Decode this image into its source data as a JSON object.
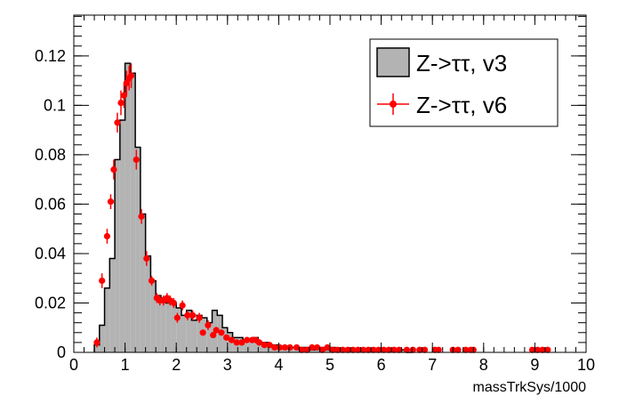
{
  "chart_data": {
    "type": "histogram",
    "title": "",
    "xlabel": "massTrkSys/1000",
    "ylabel": "",
    "xlim": [
      0,
      10
    ],
    "ylim": [
      0,
      0.1365
    ],
    "grid": false,
    "legend_position": "top-right",
    "x_ticks": [
      "0",
      "1",
      "2",
      "3",
      "4",
      "5",
      "6",
      "7",
      "8",
      "9",
      "10"
    ],
    "y_ticks": [
      "0",
      "0.02",
      "0.04",
      "0.06",
      "0.08",
      "0.1",
      "0.12"
    ],
    "bin_width": 0.1,
    "series": [
      {
        "name": "Z->ττ, v3",
        "style": "filled-step",
        "fill_color": "#b3b3b3",
        "line_color": "#000000",
        "bin_starts": [
          0.4,
          0.5,
          0.6,
          0.7,
          0.8,
          0.9,
          1.0,
          1.1,
          1.2,
          1.3,
          1.4,
          1.5,
          1.6,
          1.7,
          1.8,
          1.9,
          2.0,
          2.1,
          2.2,
          2.3,
          2.4,
          2.5,
          2.6,
          2.7,
          2.8,
          2.9,
          3.0,
          3.1,
          3.2,
          3.3,
          3.4,
          3.5,
          3.6,
          3.7,
          3.8,
          3.9,
          4.0,
          4.1,
          4.2,
          4.3,
          4.4,
          4.5,
          4.6,
          4.7,
          4.8,
          4.9,
          5.0,
          5.1,
          5.2,
          5.3,
          5.4,
          5.5,
          5.6,
          5.7,
          5.8,
          5.9,
          6.0,
          6.1,
          6.2,
          6.3,
          6.4,
          6.5
        ],
        "values": [
          0.003,
          0.011,
          0.026,
          0.038,
          0.078,
          0.094,
          0.117,
          0.113,
          0.083,
          0.056,
          0.039,
          0.029,
          0.023,
          0.022,
          0.02,
          0.02,
          0.018,
          0.015,
          0.017,
          0.013,
          0.015,
          0.014,
          0.012,
          0.017,
          0.015,
          0.01,
          0.008,
          0.006,
          0.006,
          0.005,
          0.005,
          0.006,
          0.004,
          0.004,
          0.003,
          0.003,
          0.002,
          0.002,
          0.002,
          0.002,
          0.002,
          0.002,
          0.001,
          0.002,
          0.002,
          0.001,
          0.002,
          0.001,
          0.001,
          0.001,
          0.001,
          0.001,
          0.001,
          0.001,
          0.001,
          0.001,
          0.001,
          0.001,
          0.001,
          0.001,
          0.001,
          0.0
        ]
      },
      {
        "name": "Z->ττ, v6",
        "style": "markers-with-errors",
        "color": "#ff0000",
        "x": [
          0.45,
          0.55,
          0.65,
          0.72,
          0.78,
          0.85,
          0.92,
          0.98,
          1.03,
          1.08,
          1.12,
          1.22,
          1.32,
          1.42,
          1.52,
          1.62,
          1.68,
          1.75,
          1.82,
          1.88,
          1.95,
          2.02,
          2.12,
          2.22,
          2.32,
          2.45,
          2.52,
          2.62,
          2.72,
          2.78,
          2.88,
          2.98,
          3.08,
          3.18,
          3.28,
          3.38,
          3.48,
          3.55,
          3.62,
          3.72,
          3.82,
          3.92,
          4.02,
          4.12,
          4.22,
          4.35,
          4.45,
          4.55,
          4.65,
          4.75,
          4.85,
          4.95,
          5.05,
          5.15,
          5.25,
          5.35,
          5.45,
          5.55,
          5.65,
          5.75,
          5.85,
          5.95,
          6.05,
          6.15,
          6.25,
          6.35,
          6.5,
          6.62,
          6.75,
          6.85,
          7.05,
          7.12,
          7.4,
          7.5,
          7.65,
          7.75,
          7.8,
          8.95,
          9.05,
          9.15,
          9.25
        ],
        "y": [
          0.004,
          0.029,
          0.047,
          0.061,
          0.074,
          0.093,
          0.101,
          0.104,
          0.109,
          0.111,
          0.112,
          0.078,
          0.055,
          0.038,
          0.029,
          0.022,
          0.021,
          0.021,
          0.022,
          0.021,
          0.02,
          0.014,
          0.019,
          0.015,
          0.015,
          0.014,
          0.008,
          0.011,
          0.007,
          0.009,
          0.008,
          0.006,
          0.005,
          0.004,
          0.004,
          0.005,
          0.005,
          0.005,
          0.004,
          0.003,
          0.003,
          0.002,
          0.002,
          0.002,
          0.002,
          0.002,
          0.001,
          0.001,
          0.002,
          0.002,
          0.001,
          0.002,
          0.001,
          0.001,
          0.001,
          0.001,
          0.001,
          0.001,
          0.001,
          0.001,
          0.001,
          0.001,
          0.001,
          0.001,
          0.001,
          0.001,
          0.001,
          0.001,
          0.001,
          0.001,
          0.001,
          0.001,
          0.001,
          0.001,
          0.001,
          0.001,
          0.001,
          0.001,
          0.001,
          0.001,
          0.001
        ],
        "yerr": [
          0.002,
          0.003,
          0.003,
          0.003,
          0.004,
          0.004,
          0.005,
          0.005,
          0.005,
          0.005,
          0.005,
          0.004,
          0.003,
          0.003,
          0.002,
          0.002,
          0.002,
          0.002,
          0.002,
          0.002,
          0.002,
          0.002,
          0.002,
          0.002,
          0.002,
          0.002,
          0.001,
          0.002,
          0.001,
          0.001,
          0.001,
          0.001,
          0.001,
          0.001,
          0.001,
          0.001,
          0.001,
          0.001,
          0.001,
          0.001,
          0.001,
          0.001,
          0.001,
          0.001,
          0.001,
          0.001,
          0.001,
          0.001,
          0.001,
          0.001,
          0.001,
          0.001,
          0.001,
          0.001,
          0.001,
          0.001,
          0.001,
          0.001,
          0.001,
          0.001,
          0.001,
          0.001,
          0.001,
          0.001,
          0.001,
          0.001,
          0.001,
          0.001,
          0.001,
          0.001,
          0.001,
          0.001,
          0.001,
          0.001,
          0.001,
          0.001,
          0.001,
          0.001,
          0.001,
          0.001,
          0.001
        ]
      }
    ]
  }
}
